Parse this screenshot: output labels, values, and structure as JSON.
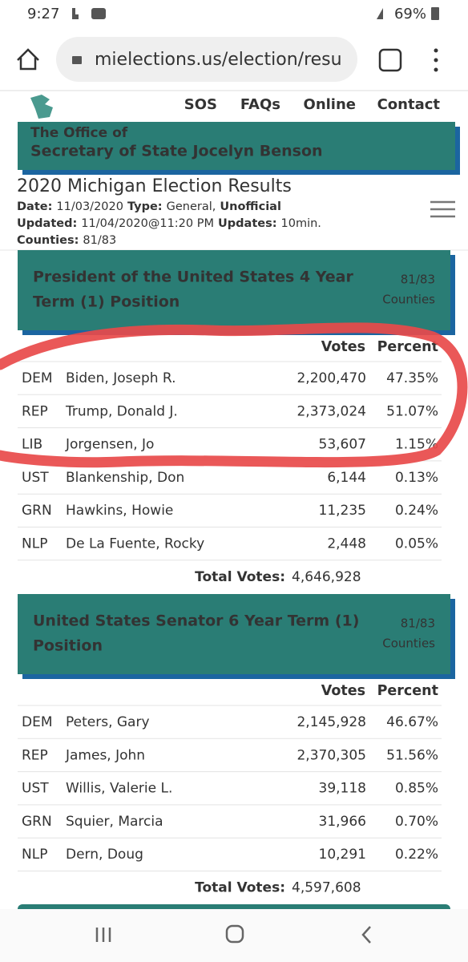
{
  "status_bar": {
    "time": "9:27",
    "battery": "69%"
  },
  "browser": {
    "url": "mielections.us/election/resu"
  },
  "nav": [
    "SOS",
    "FAQs",
    "Online",
    "Contact"
  ],
  "banner": {
    "line1": "The Office of",
    "line2": "Secretary of State Jocelyn Benson"
  },
  "title": "2020 Michigan Election Results",
  "meta": {
    "date_label": "Date:",
    "date": "11/03/2020",
    "type_label": "Type:",
    "type": "General,",
    "status": "Unofficial",
    "updated_label": "Updated:",
    "updated": "11/04/2020@11:20 PM",
    "updates_label": "Updates:",
    "updates": "10min.",
    "counties_label": "Counties:",
    "counties": "81/83"
  },
  "races": [
    {
      "title_lines": [
        "President of the United States 4 Year",
        "Term (1) Position"
      ],
      "counties": "81/83",
      "counties_label": "Counties",
      "headers": [
        "Votes",
        "Percent"
      ],
      "rows": [
        [
          "DEM",
          "Biden, Joseph R.",
          "2,200,470",
          "47.35%"
        ],
        [
          "REP",
          "Trump, Donald J.",
          "2,373,024",
          "51.07%"
        ],
        [
          "LIB",
          "Jorgensen, Jo",
          "53,607",
          "1.15%"
        ],
        [
          "UST",
          "Blankenship, Don",
          "6,144",
          "0.13%"
        ],
        [
          "GRN",
          "Hawkins, Howie",
          "11,235",
          "0.24%"
        ],
        [
          "NLP",
          "De La Fuente, Rocky",
          "2,448",
          "0.05%"
        ]
      ],
      "total_label": "Total Votes:",
      "total": "4,646,928"
    },
    {
      "title_lines": [
        "United States Senator 6 Year Term (1)",
        "Position"
      ],
      "counties": "81/83",
      "counties_label": "Counties",
      "headers": [
        "Votes",
        "Percent"
      ],
      "rows": [
        [
          "DEM",
          "Peters, Gary",
          "2,145,928",
          "46.67%"
        ],
        [
          "REP",
          "James, John",
          "2,370,305",
          "51.56%"
        ],
        [
          "UST",
          "Willis, Valerie L.",
          "39,118",
          "0.85%"
        ],
        [
          "GRN",
          "Squier, Marcia",
          "31,966",
          "0.70%"
        ],
        [
          "NLP",
          "Dern, Doug",
          "10,291",
          "0.22%"
        ]
      ],
      "total_label": "Total Votes:",
      "total": "4,597,608"
    }
  ]
}
